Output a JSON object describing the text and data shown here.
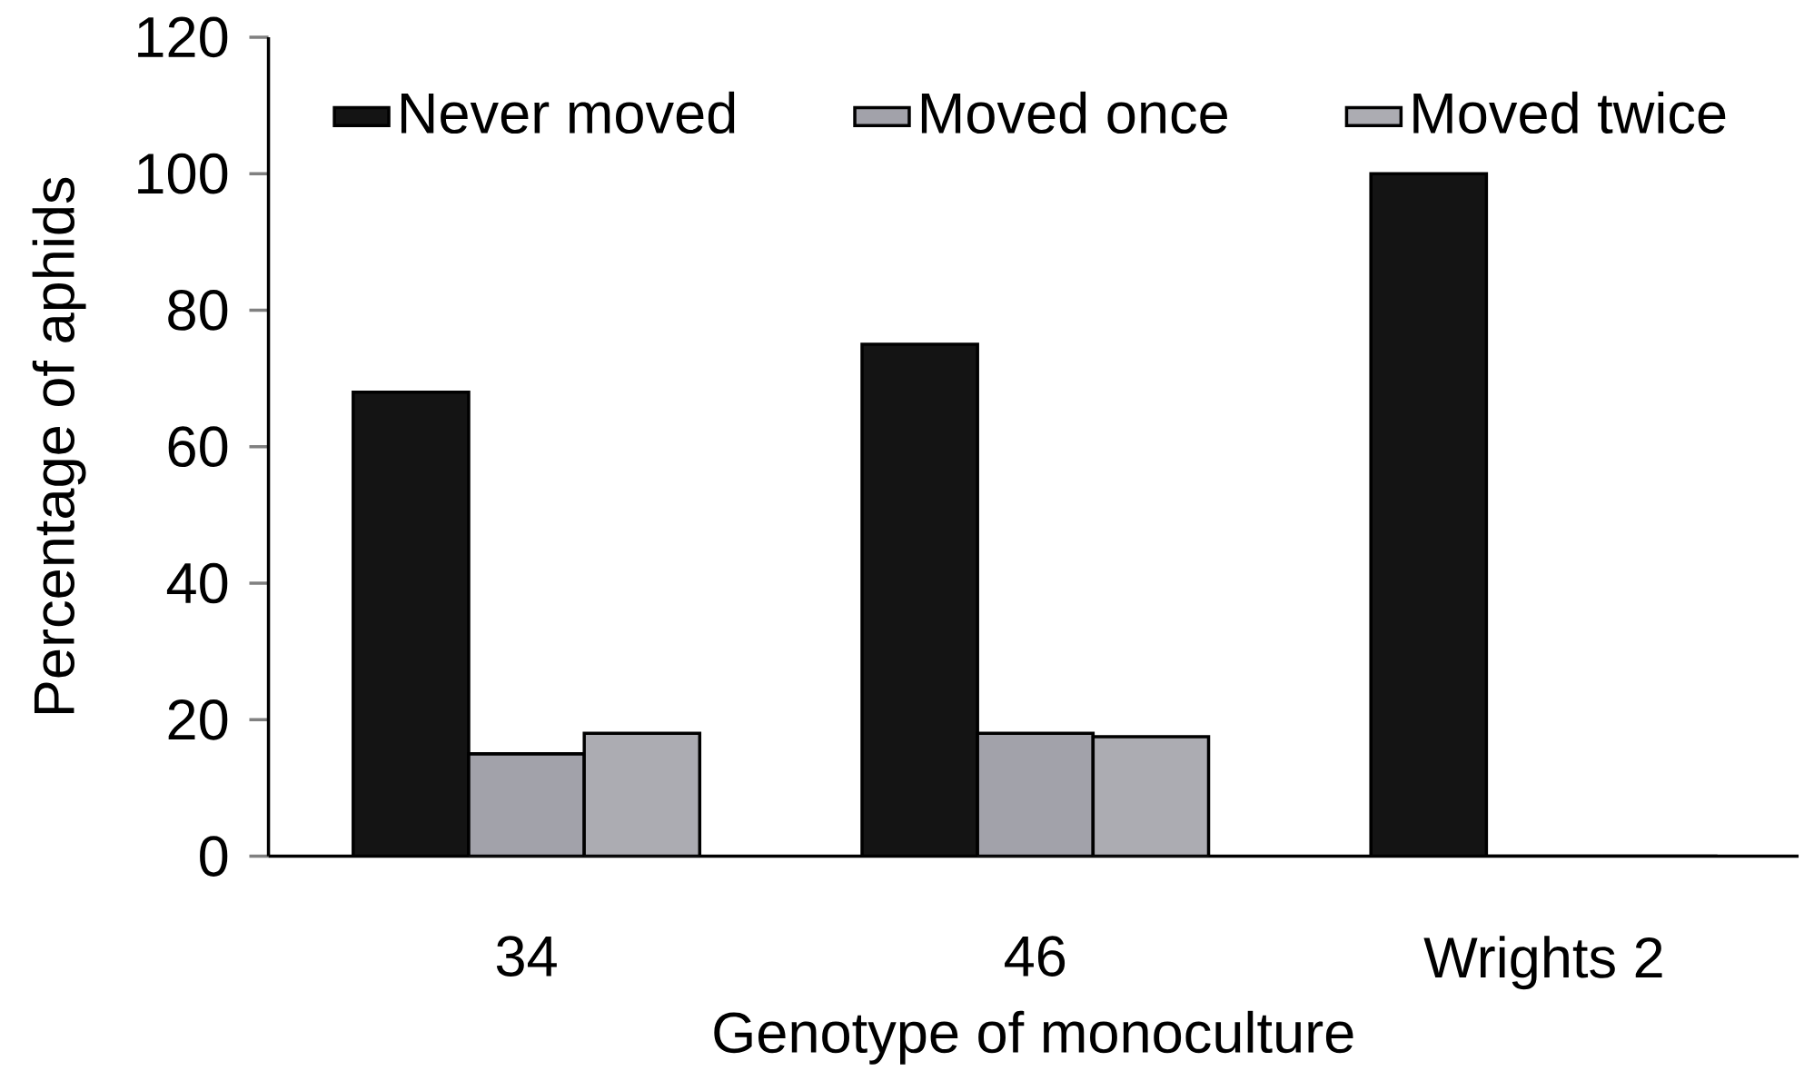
{
  "chart_data": {
    "type": "bar",
    "xlabel": "Genotype of monoculture",
    "ylabel": "Percentage of aphids",
    "categories": [
      "34",
      "46",
      "Wrights 2"
    ],
    "series": [
      {
        "name": "Never moved",
        "color": "#141414",
        "values": [
          68,
          75,
          100
        ]
      },
      {
        "name": "Moved once",
        "color": "#a2a2aa",
        "values": [
          15,
          18,
          0
        ]
      },
      {
        "name": "Moved twice",
        "color": "#acacb2",
        "values": [
          18,
          17.5,
          0
        ]
      }
    ],
    "ylim": [
      0,
      120
    ],
    "yticks": [
      0,
      20,
      40,
      60,
      80,
      100,
      120
    ],
    "legend": "top",
    "grid": false
  }
}
